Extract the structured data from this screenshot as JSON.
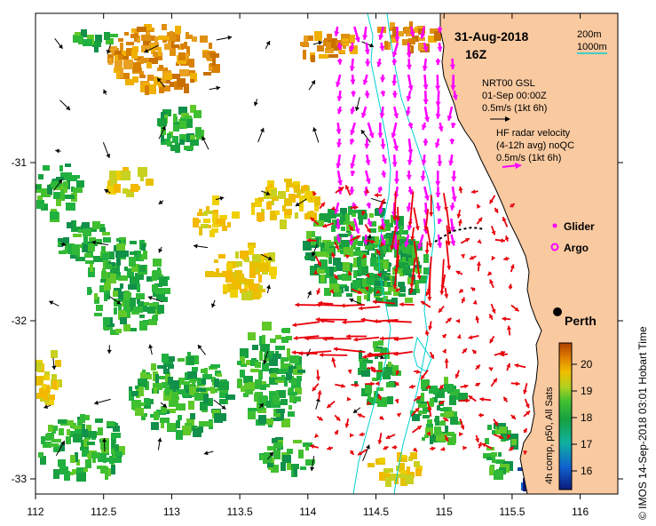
{
  "title": {
    "date": "31-Aug-2018",
    "time": "16Z"
  },
  "depth_legend": {
    "contour_200": "200m",
    "contour_1000": "1000m",
    "contour_1000_color": "#00d0d0"
  },
  "model": {
    "name": "NRT00 GSL",
    "datetime": "01-Sep 00:00Z",
    "scale": "0.5m/s (1kt 6h)"
  },
  "radar": {
    "line1": "HF radar velocity",
    "line2": "(4-12h avg) noQC",
    "scale": "0.5m/s (1kt 6h)",
    "color": "#ff00ff"
  },
  "platforms": {
    "glider_label": "Glider",
    "argo_label": "Argo",
    "marker_color": "#ff00ff"
  },
  "city": {
    "name": "Perth"
  },
  "axes": {
    "x_ticks": [
      "112",
      "112.5",
      "113",
      "113.5",
      "114",
      "114.5",
      "115",
      "115.5",
      "116"
    ],
    "y_ticks": [
      "-31",
      "-32",
      "-33"
    ]
  },
  "colorbar": {
    "label": "4h comp, p50, All Sats",
    "ticks": [
      "20",
      "19",
      "18",
      "17",
      "16"
    ],
    "min": 15.3,
    "max": 20.8
  },
  "credit": "© IMOS 14-Sep-2018 03:01 Hobart Time",
  "colors": {
    "land": "#f9c9a0",
    "radar_arrows": "#ff00ff",
    "hf_arrows": "#e8000a",
    "model_arrows": "#000000"
  }
}
